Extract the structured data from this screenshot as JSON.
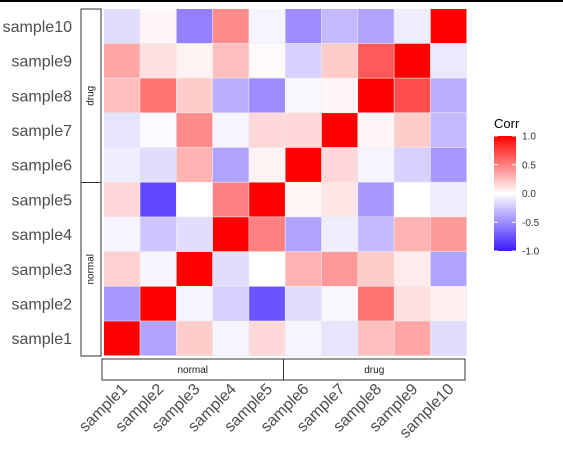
{
  "chart_data": {
    "type": "heatmap",
    "rows_top_to_bottom": [
      "sample10",
      "sample9",
      "sample8",
      "sample7",
      "sample6",
      "sample5",
      "sample4",
      "sample3",
      "sample2",
      "sample1"
    ],
    "columns": [
      "sample1",
      "sample2",
      "sample3",
      "sample4",
      "sample5",
      "sample6",
      "sample7",
      "sample8",
      "sample9",
      "sample10"
    ],
    "values": [
      [
        -0.15,
        0.03,
        -0.55,
        0.45,
        -0.05,
        -0.5,
        -0.3,
        -0.4,
        -0.08,
        1.0
      ],
      [
        0.35,
        0.12,
        0.05,
        0.25,
        0.02,
        -0.2,
        0.2,
        0.65,
        1.0,
        -0.1
      ],
      [
        0.25,
        0.55,
        0.2,
        -0.35,
        -0.5,
        -0.03,
        0.03,
        1.0,
        0.7,
        -0.35
      ],
      [
        -0.12,
        -0.02,
        0.45,
        -0.05,
        0.15,
        0.15,
        1.0,
        0.03,
        0.2,
        -0.3
      ],
      [
        -0.08,
        -0.15,
        0.3,
        -0.4,
        0.05,
        1.0,
        0.15,
        -0.05,
        -0.2,
        -0.45
      ],
      [
        0.15,
        -0.8,
        0.0,
        0.5,
        1.0,
        0.04,
        0.1,
        -0.45,
        0.0,
        -0.08
      ],
      [
        -0.05,
        -0.25,
        -0.15,
        1.0,
        0.5,
        -0.4,
        -0.08,
        -0.3,
        0.3,
        0.4
      ],
      [
        0.18,
        -0.04,
        1.0,
        -0.15,
        0.0,
        0.3,
        0.4,
        0.2,
        0.08,
        -0.4
      ],
      [
        -0.45,
        1.0,
        -0.05,
        -0.2,
        -0.75,
        -0.15,
        -0.03,
        0.55,
        0.12,
        0.06
      ],
      [
        1.0,
        -0.4,
        0.2,
        -0.05,
        0.15,
        -0.05,
        -0.12,
        0.25,
        0.35,
        -0.15
      ]
    ],
    "groups": {
      "rows": [
        {
          "label": "drug",
          "count": 5
        },
        {
          "label": "normal",
          "count": 5
        }
      ],
      "columns": [
        {
          "label": "normal",
          "count": 5
        },
        {
          "label": "drug",
          "count": 5
        }
      ]
    },
    "legend": {
      "title": "Corr",
      "ticks": [
        "1.0",
        "0.5",
        "0.0",
        "-0.5",
        "-1.0"
      ],
      "tick_values": [
        1.0,
        0.5,
        0.0,
        -0.5,
        -1.0
      ],
      "range": [
        -1,
        1
      ],
      "colors": {
        "low": "#3a1aff",
        "mid": "#ffffff",
        "high": "#ff0000"
      }
    },
    "grid": true
  }
}
